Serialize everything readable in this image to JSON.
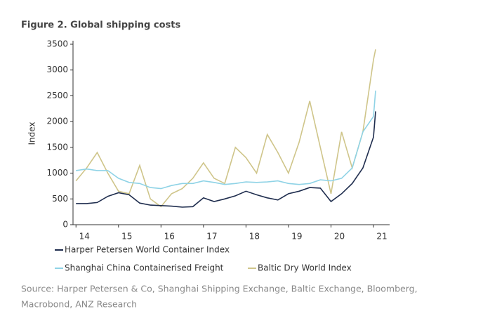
{
  "chart_data": {
    "type": "line",
    "title": "Figure 2. Global shipping costs",
    "y_label": "Index",
    "x": [
      14.0,
      14.25,
      14.5,
      14.75,
      15.0,
      15.25,
      15.5,
      15.75,
      16.0,
      16.25,
      16.5,
      16.75,
      17.0,
      17.25,
      17.5,
      17.75,
      18.0,
      18.25,
      18.5,
      18.75,
      19.0,
      19.25,
      19.5,
      19.75,
      20.0,
      20.25,
      20.5,
      20.75,
      21.0,
      21.05
    ],
    "series": [
      {
        "name": "Harper Petersen World Container Index",
        "color": "#1f2d4e",
        "values": [
          410,
          410,
          430,
          550,
          620,
          580,
          420,
          380,
          370,
          360,
          340,
          350,
          520,
          450,
          500,
          560,
          650,
          580,
          520,
          480,
          600,
          650,
          720,
          710,
          450,
          600,
          800,
          1100,
          1700,
          2200
        ]
      },
      {
        "name": "Shanghai China Containerised Freight",
        "color": "#8fd3e6",
        "values": [
          1050,
          1080,
          1050,
          1050,
          900,
          820,
          800,
          720,
          700,
          760,
          800,
          800,
          850,
          820,
          780,
          800,
          830,
          820,
          830,
          850,
          800,
          780,
          800,
          870,
          850,
          900,
          1100,
          1800,
          2100,
          2600
        ]
      },
      {
        "name": "Baltic Dry World Index",
        "color": "#cfc58a",
        "values": [
          850,
          1100,
          1400,
          1000,
          650,
          600,
          1150,
          500,
          350,
          600,
          700,
          900,
          1200,
          900,
          800,
          1500,
          1300,
          1000,
          1750,
          1400,
          1000,
          1600,
          2400,
          1500,
          600,
          1800,
          1100,
          1800,
          3200,
          3400
        ]
      }
    ],
    "xlim": [
      13.93,
      21.38
    ],
    "xticks": [
      14,
      15,
      16,
      17,
      18,
      19,
      20,
      21
    ],
    "ylim": [
      0,
      3500
    ],
    "yticks": [
      0,
      500,
      1000,
      1500,
      2000,
      2500,
      3000,
      3500
    ],
    "source": [
      "Source: Harper Petersen & Co, Shanghai Shipping Exchange, Baltic Exchange, Bloomberg,",
      "Macrobond, ANZ Research"
    ]
  }
}
